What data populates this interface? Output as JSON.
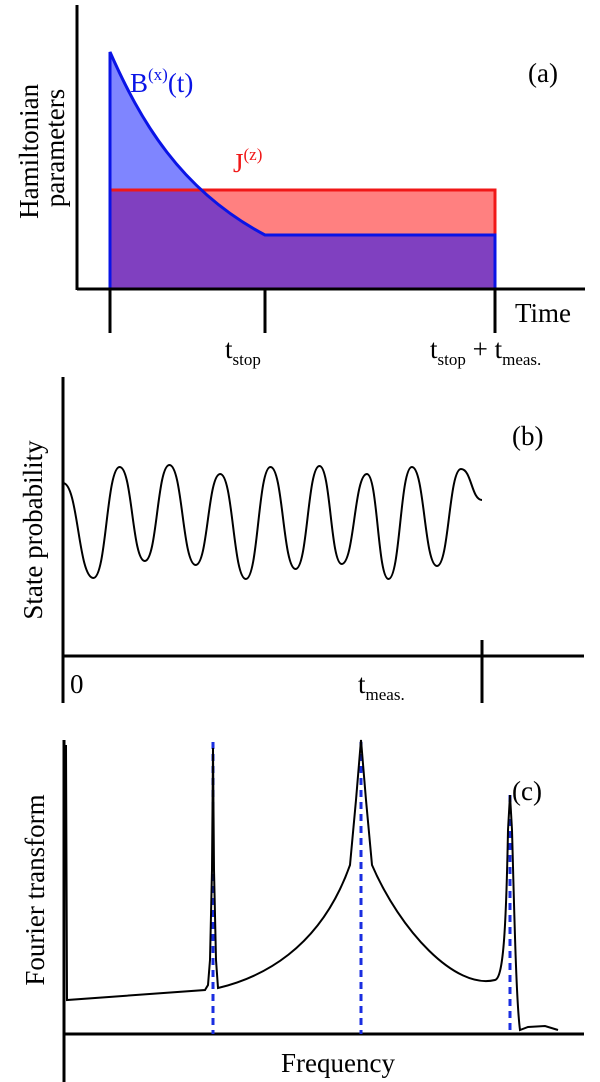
{
  "panel_a": {
    "tag": "(a)",
    "ylabel_line1": "Hamiltonian",
    "ylabel_line2": "parameters",
    "xlabel": "Time",
    "b_label": "B",
    "b_label_sup": "(x)",
    "b_label_tail": "(t)",
    "j_label": "J",
    "j_label_sup": "(z)",
    "tick_stop_main": "t",
    "tick_stop_sub": "stop",
    "tick_end_main1": "t",
    "tick_end_sub1": "stop",
    "tick_end_plus": " + t",
    "tick_end_sub2": "meas.",
    "colors": {
      "b_line": "#0a14e6",
      "b_fill": "#7f85ff",
      "j_line": "#f01818",
      "j_fill": "#ff8080",
      "overlap": "#8040c0"
    }
  },
  "panel_b": {
    "tag": "(b)",
    "ylabel": "State probability",
    "tick_zero": "0",
    "tick_meas_main": "t",
    "tick_meas_sub": "meas."
  },
  "panel_c": {
    "tag": "(c)",
    "ylabel": "Fourier transform",
    "xlabel": "Frequency",
    "colors": {
      "curve": "#000000",
      "peak_markers": "#1a2ee0"
    }
  }
}
